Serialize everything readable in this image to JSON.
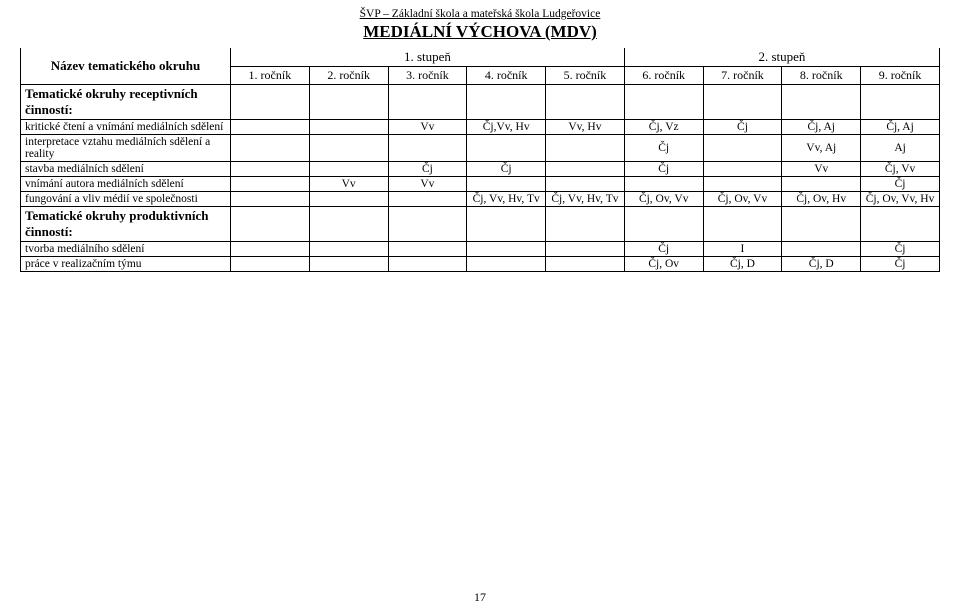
{
  "header": "ŠVP – Základní škola a mateřská škola Ludgeřovice",
  "title": "MEDIÁLNÍ VÝCHOVA (MDV)",
  "row_header_label": "Název tematického okruhu",
  "stage1_label": "1. stupeň",
  "stage2_label": "2. stupeň",
  "grades": {
    "g1": "1. ročník",
    "g2": "2. ročník",
    "g3": "3. ročník",
    "g4": "4. ročník",
    "g5": "5. ročník",
    "g6": "6. ročník",
    "g7": "7. ročník",
    "g8": "8. ročník",
    "g9": "9. ročník"
  },
  "sections": {
    "receptive": "Tematické okruhy receptivních činností:",
    "productive": "Tematické okruhy produktivních činností:"
  },
  "rows": {
    "r1": {
      "label": "kritické čtení a vnímání mediálních sdělení",
      "c1": "",
      "c2": "",
      "c3": "Vv",
      "c4": "Čj,Vv, Hv",
      "c5": "Vv, Hv",
      "c6": "Čj, Vz",
      "c7": "Čj",
      "c8": "Čj, Aj",
      "c9": "Čj, Aj"
    },
    "r2": {
      "label": "interpretace vztahu mediálních sdělení a reality",
      "c1": "",
      "c2": "",
      "c3": "",
      "c4": "",
      "c5": "",
      "c6": "Čj",
      "c7": "",
      "c8": "Vv, Aj",
      "c9": "Aj"
    },
    "r3": {
      "label": "stavba mediálních sdělení",
      "c1": "",
      "c2": "",
      "c3": "Čj",
      "c4": "Čj",
      "c5": "",
      "c6": "Čj",
      "c7": "",
      "c8": "Vv",
      "c9": "Čj, Vv"
    },
    "r4": {
      "label": "vnímání autora mediálních sdělení",
      "c1": "",
      "c2": "Vv",
      "c3": "Vv",
      "c4": "",
      "c5": "",
      "c6": "",
      "c7": "",
      "c8": "",
      "c9": "Čj"
    },
    "r5": {
      "label": "fungování a vliv médií ve společnosti",
      "c1": "",
      "c2": "",
      "c3": "",
      "c4": "Čj, Vv, Hv, Tv",
      "c5": "Čj, Vv, Hv, Tv",
      "c6": "Čj, Ov, Vv",
      "c7": "Čj, Ov, Vv",
      "c8": "Čj, Ov, Hv",
      "c9": "Čj, Ov, Vv, Hv"
    },
    "r6": {
      "label": "tvorba mediálního sdělení",
      "c1": "",
      "c2": "",
      "c3": "",
      "c4": "",
      "c5": "",
      "c6": "Čj",
      "c7": "I",
      "c8": "",
      "c9": "Čj"
    },
    "r7": {
      "label": "práce v realizačním týmu",
      "c1": "",
      "c2": "",
      "c3": "",
      "c4": "",
      "c5": "",
      "c6": "Čj, Ov",
      "c7": "Čj, D",
      "c8": "Čj, D",
      "c9": "Čj"
    }
  },
  "page_number": "17"
}
